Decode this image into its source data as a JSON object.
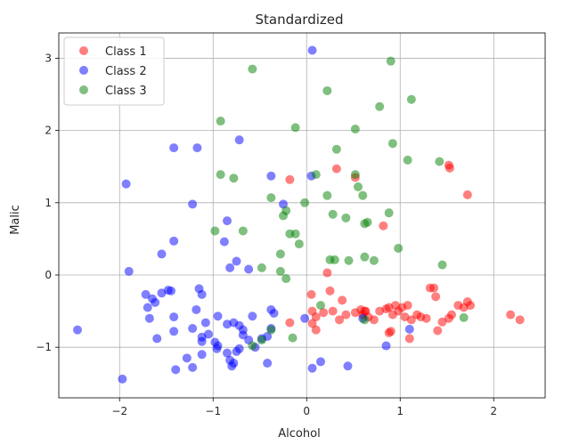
{
  "chart_data": {
    "type": "scatter",
    "title": "Standardized",
    "xlabel": "Alcohol",
    "ylabel": "Malic",
    "xlim": [
      -2.65,
      2.55
    ],
    "ylim": [
      -1.7,
      3.35
    ],
    "xticks": [
      -2,
      -1,
      0,
      1,
      2
    ],
    "yticks": [
      -1,
      0,
      1,
      2,
      3
    ],
    "xtick_labels": [
      "−2",
      "−1",
      "0",
      "1",
      "2"
    ],
    "ytick_labels": [
      "−1",
      "0",
      "1",
      "2",
      "3"
    ],
    "grid": true,
    "legend_position": "top-left",
    "series": [
      {
        "name": "Class 1",
        "color": "#ff0000",
        "points": [
          [
            -0.18,
            1.32
          ],
          [
            0.32,
            1.47
          ],
          [
            0.52,
            1.35
          ],
          [
            1.52,
            1.52
          ],
          [
            1.53,
            1.48
          ],
          [
            1.72,
            1.11
          ],
          [
            0.82,
            0.68
          ],
          [
            0.22,
            0.03
          ],
          [
            0.05,
            -0.27
          ],
          [
            0.25,
            -0.22
          ],
          [
            0.38,
            -0.35
          ],
          [
            0.06,
            -0.5
          ],
          [
            0.1,
            -0.58
          ],
          [
            0.18,
            -0.52
          ],
          [
            0.28,
            -0.5
          ],
          [
            0.35,
            -0.62
          ],
          [
            0.42,
            -0.55
          ],
          [
            0.52,
            -0.52
          ],
          [
            0.58,
            -0.48
          ],
          [
            0.6,
            -0.55
          ],
          [
            0.63,
            -0.5
          ],
          [
            0.66,
            -0.58
          ],
          [
            0.72,
            -0.62
          ],
          [
            0.78,
            -0.5
          ],
          [
            0.85,
            -0.47
          ],
          [
            0.88,
            -0.45
          ],
          [
            0.92,
            -0.55
          ],
          [
            0.95,
            -0.42
          ],
          [
            0.98,
            -0.5
          ],
          [
            1.02,
            -0.45
          ],
          [
            1.05,
            -0.58
          ],
          [
            1.08,
            -0.42
          ],
          [
            1.12,
            -0.62
          ],
          [
            1.18,
            -0.55
          ],
          [
            1.22,
            -0.58
          ],
          [
            1.28,
            -0.6
          ],
          [
            1.32,
            -0.18
          ],
          [
            1.36,
            -0.18
          ],
          [
            1.38,
            -0.3
          ],
          [
            1.4,
            -0.77
          ],
          [
            1.45,
            -0.65
          ],
          [
            1.52,
            -0.6
          ],
          [
            1.55,
            -0.55
          ],
          [
            1.62,
            -0.42
          ],
          [
            1.68,
            -0.45
          ],
          [
            1.72,
            -0.37
          ],
          [
            1.75,
            -0.42
          ],
          [
            2.18,
            -0.55
          ],
          [
            2.28,
            -0.62
          ],
          [
            1.1,
            -0.88
          ],
          [
            0.9,
            -0.78
          ],
          [
            0.06,
            -0.67
          ],
          [
            0.1,
            -0.76
          ],
          [
            0.88,
            -0.8
          ],
          [
            -0.18,
            -0.66
          ],
          [
            0.62,
            -0.5
          ]
        ]
      },
      {
        "name": "Class 2",
        "color": "#0000ff",
        "points": [
          [
            0.06,
            3.11
          ],
          [
            -1.42,
            1.76
          ],
          [
            -1.17,
            1.76
          ],
          [
            -0.72,
            1.87
          ],
          [
            -1.93,
            1.26
          ],
          [
            -1.22,
            0.98
          ],
          [
            -0.38,
            1.37
          ],
          [
            -1.42,
            0.47
          ],
          [
            -1.55,
            0.29
          ],
          [
            -1.9,
            0.05
          ],
          [
            -0.85,
            0.75
          ],
          [
            -0.75,
            0.19
          ],
          [
            -0.82,
            0.1
          ],
          [
            -0.62,
            0.08
          ],
          [
            -0.25,
            0.98
          ],
          [
            0.05,
            1.37
          ],
          [
            -0.88,
            0.46
          ],
          [
            -1.72,
            -0.27
          ],
          [
            -1.65,
            -0.33
          ],
          [
            -1.7,
            -0.45
          ],
          [
            -1.62,
            -0.38
          ],
          [
            -1.55,
            -0.25
          ],
          [
            -1.48,
            -0.21
          ],
          [
            -1.45,
            -0.22
          ],
          [
            -1.15,
            -0.19
          ],
          [
            -1.12,
            -0.27
          ],
          [
            -1.18,
            -0.48
          ],
          [
            -1.08,
            -0.66
          ],
          [
            -0.95,
            -0.57
          ],
          [
            -0.85,
            -0.68
          ],
          [
            -0.78,
            -0.66
          ],
          [
            -0.72,
            -0.7
          ],
          [
            -0.68,
            -0.76
          ],
          [
            -0.58,
            -0.57
          ],
          [
            -0.38,
            -0.48
          ],
          [
            -0.35,
            -0.53
          ],
          [
            -1.68,
            -0.6
          ],
          [
            -1.6,
            -0.88
          ],
          [
            -1.42,
            -0.58
          ],
          [
            -1.42,
            -0.78
          ],
          [
            -1.22,
            -0.74
          ],
          [
            -1.12,
            -0.86
          ],
          [
            -1.05,
            -0.82
          ],
          [
            -0.98,
            -0.93
          ],
          [
            -0.95,
            -0.98
          ],
          [
            -0.85,
            -1.08
          ],
          [
            -0.82,
            -1.18
          ],
          [
            -0.78,
            -1.22
          ],
          [
            -0.75,
            -1.06
          ],
          [
            -0.72,
            -1.02
          ],
          [
            -0.68,
            -0.83
          ],
          [
            -0.62,
            -0.9
          ],
          [
            -0.55,
            -1.0
          ],
          [
            -0.48,
            -0.88
          ],
          [
            -0.42,
            -0.85
          ],
          [
            -0.38,
            -0.74
          ],
          [
            -1.28,
            -1.15
          ],
          [
            -1.22,
            -1.28
          ],
          [
            -1.4,
            -1.31
          ],
          [
            -1.12,
            -1.1
          ],
          [
            -0.8,
            -1.26
          ],
          [
            -0.42,
            -1.22
          ],
          [
            -0.96,
            -1.02
          ],
          [
            -1.97,
            -1.44
          ],
          [
            -2.45,
            -0.76
          ],
          [
            -1.12,
            -0.92
          ],
          [
            0.06,
            -1.29
          ],
          [
            0.15,
            -1.2
          ],
          [
            0.44,
            -1.26
          ],
          [
            0.6,
            -0.6
          ],
          [
            0.85,
            -0.98
          ],
          [
            1.1,
            -0.75
          ],
          [
            -0.02,
            -0.6
          ]
        ]
      },
      {
        "name": "Class 3",
        "color": "#008000",
        "points": [
          [
            -0.58,
            2.85
          ],
          [
            0.9,
            2.96
          ],
          [
            0.22,
            2.55
          ],
          [
            1.12,
            2.43
          ],
          [
            0.78,
            2.33
          ],
          [
            -0.92,
            2.13
          ],
          [
            -0.12,
            2.04
          ],
          [
            0.52,
            2.02
          ],
          [
            0.92,
            1.82
          ],
          [
            1.08,
            1.59
          ],
          [
            1.42,
            1.57
          ],
          [
            0.32,
            1.74
          ],
          [
            -0.92,
            1.39
          ],
          [
            -0.78,
            1.34
          ],
          [
            -0.38,
            1.07
          ],
          [
            -0.22,
            0.89
          ],
          [
            -0.25,
            0.82
          ],
          [
            0.1,
            1.39
          ],
          [
            0.55,
            1.22
          ],
          [
            0.6,
            1.1
          ],
          [
            0.52,
            1.39
          ],
          [
            0.22,
            1.1
          ],
          [
            0.28,
            0.84
          ],
          [
            0.42,
            0.79
          ],
          [
            -0.02,
            1.0
          ],
          [
            -0.98,
            0.61
          ],
          [
            -0.68,
            0.61
          ],
          [
            -0.18,
            0.57
          ],
          [
            -0.12,
            0.57
          ],
          [
            -0.28,
            0.29
          ],
          [
            -0.08,
            0.43
          ],
          [
            0.62,
            0.71
          ],
          [
            0.65,
            0.73
          ],
          [
            0.88,
            0.86
          ],
          [
            0.98,
            0.37
          ],
          [
            1.45,
            0.14
          ],
          [
            -0.48,
            0.1
          ],
          [
            -0.28,
            0.05
          ],
          [
            -0.22,
            -0.05
          ],
          [
            0.25,
            0.21
          ],
          [
            0.3,
            0.21
          ],
          [
            0.45,
            0.2
          ],
          [
            0.62,
            0.25
          ],
          [
            0.72,
            0.2
          ],
          [
            0.15,
            -0.42
          ],
          [
            -0.15,
            -0.87
          ],
          [
            -0.38,
            -0.76
          ],
          [
            -0.48,
            -0.9
          ],
          [
            -0.58,
            -0.98
          ],
          [
            0.62,
            -0.62
          ],
          [
            1.68,
            -0.59
          ]
        ]
      }
    ]
  }
}
